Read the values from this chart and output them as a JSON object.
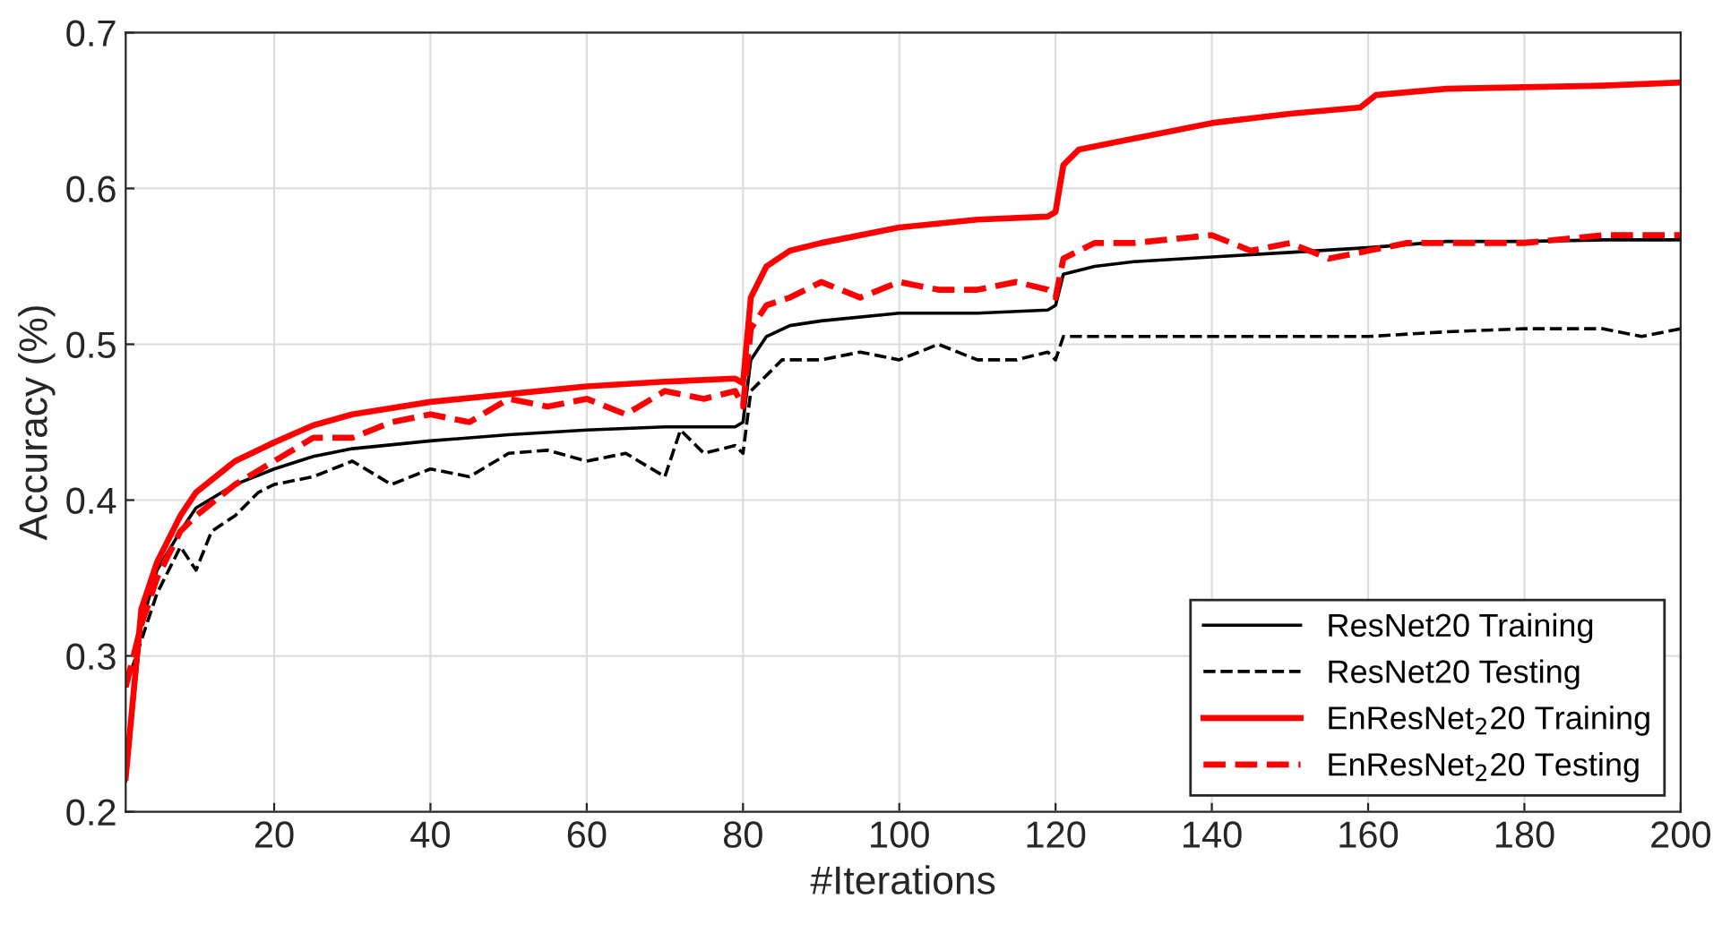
{
  "chart_data": {
    "type": "line",
    "xlabel": "#Iterations",
    "ylabel": "Accuracy (%)",
    "xlim": [
      1,
      200
    ],
    "ylim": [
      0.2,
      0.7
    ],
    "xticks": [
      20,
      40,
      60,
      80,
      100,
      120,
      140,
      160,
      180,
      200
    ],
    "yticks": [
      0.2,
      0.3,
      0.4,
      0.5,
      0.6,
      0.7
    ],
    "grid": true,
    "legend": "bottom right",
    "series": [
      {
        "name": "ResNet20 Training",
        "color": "#000000",
        "line_style": "solid",
        "x": [
          1,
          3,
          5,
          8,
          10,
          15,
          20,
          25,
          30,
          40,
          50,
          60,
          70,
          79,
          80,
          81,
          83,
          86,
          90,
          100,
          110,
          119,
          120,
          121,
          125,
          130,
          140,
          150,
          160,
          170,
          180,
          190,
          200
        ],
        "values": [
          0.22,
          0.32,
          0.355,
          0.38,
          0.395,
          0.41,
          0.42,
          0.428,
          0.433,
          0.438,
          0.442,
          0.445,
          0.447,
          0.447,
          0.45,
          0.49,
          0.505,
          0.512,
          0.515,
          0.52,
          0.52,
          0.522,
          0.525,
          0.545,
          0.55,
          0.553,
          0.556,
          0.559,
          0.562,
          0.566,
          0.566,
          0.567,
          0.567
        ]
      },
      {
        "name": "ResNet20 Testing",
        "color": "#000000",
        "line_style": "dashed",
        "x": [
          1,
          3,
          5,
          8,
          10,
          12,
          15,
          18,
          20,
          25,
          30,
          35,
          40,
          45,
          50,
          55,
          60,
          65,
          70,
          72,
          75,
          79,
          80,
          81,
          85,
          90,
          95,
          100,
          105,
          110,
          115,
          119,
          120,
          121,
          125,
          130,
          140,
          150,
          160,
          170,
          180,
          190,
          195,
          200
        ],
        "values": [
          0.28,
          0.31,
          0.34,
          0.37,
          0.355,
          0.38,
          0.39,
          0.405,
          0.41,
          0.415,
          0.425,
          0.41,
          0.42,
          0.415,
          0.43,
          0.432,
          0.425,
          0.43,
          0.415,
          0.445,
          0.43,
          0.435,
          0.43,
          0.47,
          0.49,
          0.49,
          0.495,
          0.49,
          0.5,
          0.49,
          0.49,
          0.495,
          0.49,
          0.505,
          0.505,
          0.505,
          0.505,
          0.505,
          0.505,
          0.508,
          0.51,
          0.51,
          0.505,
          0.51
        ]
      },
      {
        "name": "EnResNet$_{2}$20 Training",
        "color": "#ff0000",
        "line_style": "solid",
        "x": [
          1,
          3,
          5,
          8,
          10,
          15,
          20,
          25,
          30,
          40,
          50,
          60,
          70,
          79,
          80,
          81,
          83,
          86,
          90,
          100,
          110,
          119,
          120,
          121,
          123,
          130,
          140,
          150,
          159,
          161,
          170,
          180,
          190,
          200
        ],
        "values": [
          0.222,
          0.33,
          0.36,
          0.39,
          0.405,
          0.425,
          0.437,
          0.448,
          0.455,
          0.463,
          0.468,
          0.473,
          0.476,
          0.478,
          0.475,
          0.53,
          0.55,
          0.56,
          0.565,
          0.575,
          0.58,
          0.582,
          0.585,
          0.615,
          0.625,
          0.632,
          0.642,
          0.648,
          0.652,
          0.66,
          0.664,
          0.665,
          0.666,
          0.668
        ]
      },
      {
        "name": "EnResNet$_{2}$20 Testing",
        "color": "#ff0000",
        "line_style": "dashed",
        "x": [
          1,
          3,
          5,
          8,
          10,
          15,
          20,
          25,
          30,
          35,
          40,
          45,
          50,
          55,
          60,
          65,
          70,
          75,
          79,
          80,
          81,
          83,
          86,
          90,
          95,
          100,
          105,
          110,
          115,
          119,
          120,
          121,
          125,
          130,
          140,
          145,
          150,
          155,
          160,
          165,
          170,
          180,
          190,
          200
        ],
        "values": [
          0.28,
          0.32,
          0.35,
          0.38,
          0.39,
          0.41,
          0.425,
          0.44,
          0.44,
          0.45,
          0.455,
          0.45,
          0.465,
          0.46,
          0.465,
          0.455,
          0.47,
          0.465,
          0.47,
          0.46,
          0.51,
          0.525,
          0.53,
          0.54,
          0.53,
          0.54,
          0.535,
          0.535,
          0.54,
          0.535,
          0.53,
          0.555,
          0.565,
          0.565,
          0.57,
          0.56,
          0.565,
          0.555,
          0.56,
          0.565,
          0.565,
          0.565,
          0.57,
          0.57
        ]
      }
    ]
  }
}
